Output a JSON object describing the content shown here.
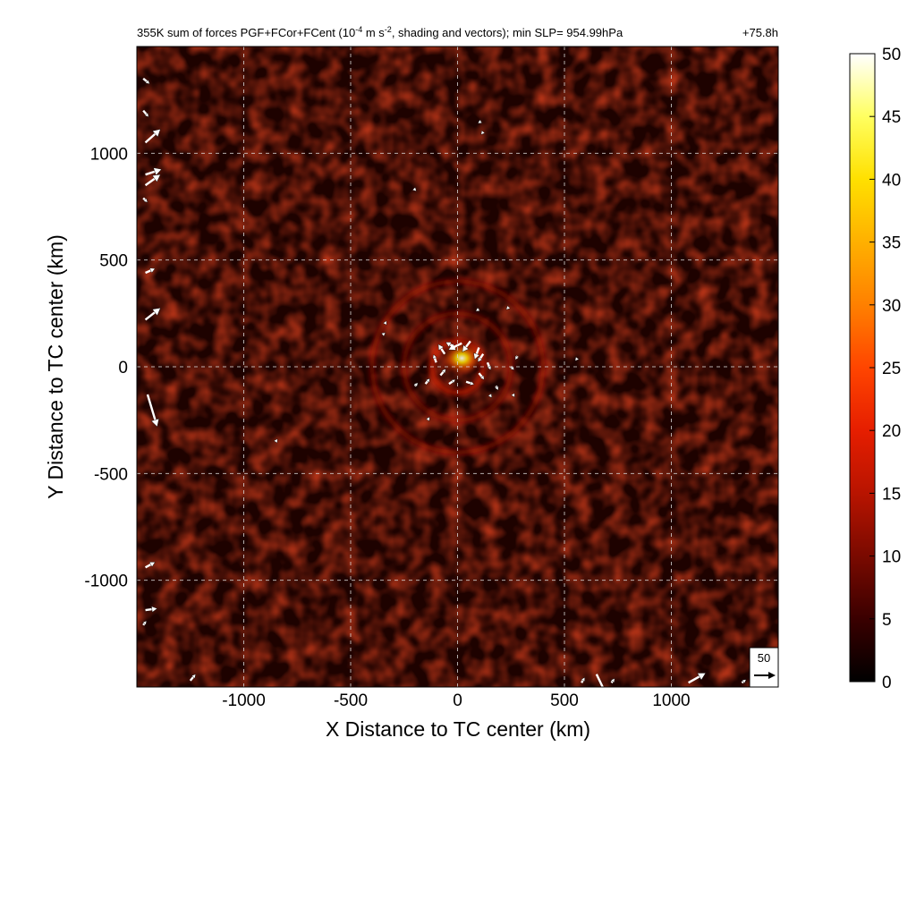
{
  "chart_data": {
    "type": "heatmap",
    "title": {
      "main": "355K sum of forces PGF+FCor+FCent (10",
      "exp": "-4",
      "mid": " m s",
      "exp2": "-2",
      "tail": ", shading and vectors); min SLP= 954.99hPa",
      "time": "+75.8h"
    },
    "xlabel": "X Distance to TC center (km)",
    "ylabel": "Y Distance to TC center (km)",
    "xlim": [
      -1500,
      1500
    ],
    "ylim": [
      -1500,
      1500
    ],
    "xticks": [
      -1000,
      -500,
      0,
      500,
      1000
    ],
    "yticks": [
      -1000,
      -500,
      0,
      500,
      1000
    ],
    "grid": true,
    "colorbar": {
      "ticks": [
        0,
        5,
        10,
        15,
        20,
        25,
        30,
        35,
        40,
        45,
        50
      ],
      "range": [
        0,
        50
      ],
      "colors": [
        "#000000",
        "#3a0000",
        "#7a0a00",
        "#b81400",
        "#e61e00",
        "#ff4500",
        "#ff8000",
        "#ffb000",
        "#ffe000",
        "#ffff60",
        "#ffffff"
      ]
    },
    "reference_vector": {
      "label": "50",
      "magnitude": 50
    },
    "field_summary": {
      "max_near_center": 40,
      "background_range": [
        0,
        10
      ],
      "rings_km": [
        120,
        250,
        400
      ]
    },
    "vectors": [
      {
        "x": 20,
        "y": 110,
        "u": -25,
        "v": -12
      },
      {
        "x": 60,
        "y": 120,
        "u": -15,
        "v": -20
      },
      {
        "x": 100,
        "y": 90,
        "u": -8,
        "v": -22
      },
      {
        "x": -10,
        "y": 90,
        "u": -18,
        "v": 10
      },
      {
        "x": -60,
        "y": 60,
        "u": -12,
        "v": 18
      },
      {
        "x": -100,
        "y": 20,
        "u": -5,
        "v": 15
      },
      {
        "x": -80,
        "y": -40,
        "u": 10,
        "v": 12
      },
      {
        "x": -40,
        "y": -80,
        "u": 12,
        "v": 8
      },
      {
        "x": 40,
        "y": -70,
        "u": 15,
        "v": -5
      },
      {
        "x": 100,
        "y": -30,
        "u": 10,
        "v": -12
      },
      {
        "x": 140,
        "y": 20,
        "u": 6,
        "v": -14
      },
      {
        "x": 120,
        "y": 60,
        "u": -10,
        "v": -15
      },
      {
        "x": -150,
        "y": -80,
        "u": 8,
        "v": 10
      },
      {
        "x": -200,
        "y": -90,
        "u": 6,
        "v": 6
      },
      {
        "x": 180,
        "y": -90,
        "u": 4,
        "v": -8
      },
      {
        "x": 250,
        "y": 0,
        "u": 6,
        "v": -6
      },
      {
        "x": 280,
        "y": 50,
        "u": -4,
        "v": -7
      },
      {
        "x": 240,
        "y": 280,
        "u": -5,
        "v": -5
      },
      {
        "x": 100,
        "y": 270,
        "u": -6,
        "v": -4
      },
      {
        "x": -340,
        "y": 200,
        "u": 3,
        "v": 6
      },
      {
        "x": -350,
        "y": 150,
        "u": 5,
        "v": 4
      },
      {
        "x": 150,
        "y": -130,
        "u": 4,
        "v": -6
      },
      {
        "x": 260,
        "y": -130,
        "u": 3,
        "v": -5
      },
      {
        "x": 560,
        "y": 40,
        "u": -4,
        "v": -5
      },
      {
        "x": -140,
        "y": -250,
        "u": 4,
        "v": 6
      },
      {
        "x": -850,
        "y": -350,
        "u": 3,
        "v": 5
      },
      {
        "x": 110,
        "y": 1150,
        "u": -6,
        "v": -4
      },
      {
        "x": 120,
        "y": 1100,
        "u": -4,
        "v": -5
      },
      {
        "x": -200,
        "y": 830,
        "u": 3,
        "v": -3
      },
      {
        "x": -1470,
        "y": 1350,
        "u": 12,
        "v": -10
      },
      {
        "x": -1470,
        "y": 1200,
        "u": 10,
        "v": -12
      },
      {
        "x": -1460,
        "y": 1050,
        "u": 28,
        "v": 25
      },
      {
        "x": -1460,
        "y": 900,
        "u": 30,
        "v": 10
      },
      {
        "x": -1460,
        "y": 850,
        "u": 28,
        "v": 20
      },
      {
        "x": -1470,
        "y": 790,
        "u": 8,
        "v": -8
      },
      {
        "x": -1460,
        "y": 440,
        "u": 18,
        "v": 8
      },
      {
        "x": -1460,
        "y": 220,
        "u": 28,
        "v": 22
      },
      {
        "x": -1450,
        "y": -130,
        "u": 18,
        "v": -60
      },
      {
        "x": -1460,
        "y": -940,
        "u": 18,
        "v": 10
      },
      {
        "x": -1460,
        "y": -1140,
        "u": 22,
        "v": 3
      },
      {
        "x": -1470,
        "y": -1210,
        "u": 6,
        "v": 8
      },
      {
        "x": -1250,
        "y": -1470,
        "u": 10,
        "v": 12
      },
      {
        "x": 650,
        "y": -1440,
        "u": 22,
        "v": -46
      },
      {
        "x": 1080,
        "y": -1480,
        "u": 32,
        "v": 18
      },
      {
        "x": 580,
        "y": -1480,
        "u": 6,
        "v": 10
      },
      {
        "x": 720,
        "y": -1480,
        "u": 6,
        "v": 8
      },
      {
        "x": 1330,
        "y": -1480,
        "u": 8,
        "v": 6
      }
    ]
  }
}
